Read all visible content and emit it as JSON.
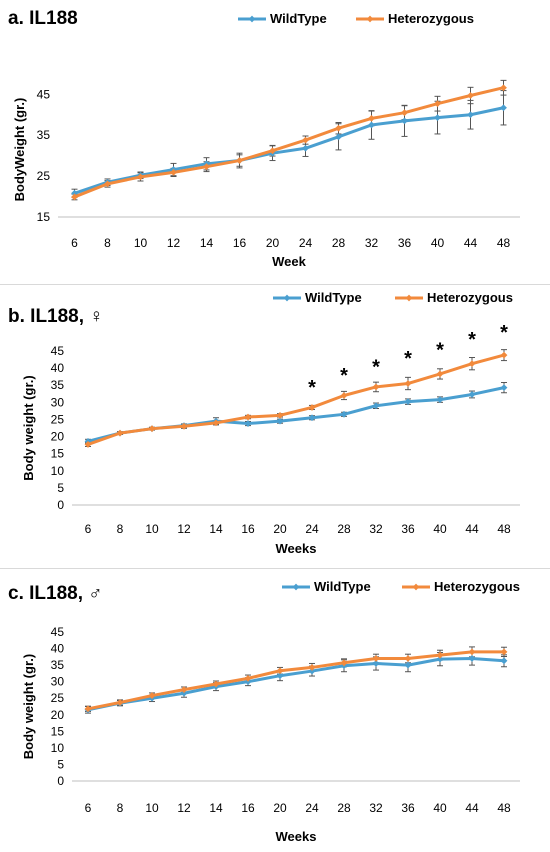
{
  "colors": {
    "wildtype": "#4a9fd0",
    "heterozygous": "#f28a3c",
    "errorbar": "#555555"
  },
  "chart_data": [
    {
      "type": "line",
      "title": "a. IL188",
      "xlabel": "Week",
      "ylabel": "BodyWeight (gr.)",
      "ylim": [
        15,
        48
      ],
      "yticks": [
        15,
        25,
        35,
        45
      ],
      "categories": [
        "6",
        "8",
        "10",
        "12",
        "14",
        "16",
        "20",
        "24",
        "28",
        "32",
        "36",
        "40",
        "44",
        "48"
      ],
      "legend_position": "top-right",
      "series": [
        {
          "name": "WildType",
          "values": [
            20.8,
            23.5,
            25.2,
            26.6,
            28.0,
            28.8,
            30.6,
            31.8,
            34.6,
            37.5,
            38.5,
            39.3,
            40.0,
            41.7
          ],
          "errors": [
            1.0,
            0.8,
            0.8,
            1.5,
            1.5,
            1.8,
            1.8,
            2.0,
            3.2,
            3.5,
            3.8,
            4.0,
            3.5,
            4.2
          ]
        },
        {
          "name": "Heterozygous",
          "values": [
            19.9,
            23.1,
            24.8,
            25.9,
            27.3,
            28.8,
            31.2,
            33.8,
            36.7,
            39.1,
            40.5,
            42.7,
            44.7,
            46.6
          ],
          "errors": [
            0.7,
            0.8,
            1.0,
            1.0,
            1.2,
            1.4,
            1.3,
            1.0,
            1.4,
            1.8,
            1.7,
            1.8,
            2.0,
            1.8
          ]
        }
      ],
      "annotations": []
    },
    {
      "type": "line",
      "title": "b. IL188, ♀",
      "xlabel": "Weeks",
      "ylabel": "Body weight (gr.)",
      "ylim": [
        0,
        45
      ],
      "yticks": [
        0,
        5,
        10,
        15,
        20,
        25,
        30,
        35,
        40,
        45
      ],
      "categories": [
        "6",
        "8",
        "10",
        "12",
        "14",
        "16",
        "20",
        "24",
        "28",
        "32",
        "36",
        "40",
        "44",
        "48"
      ],
      "legend_position": "top-right",
      "series": [
        {
          "name": "WildType",
          "values": [
            18.6,
            21.0,
            22.3,
            23.2,
            24.5,
            23.8,
            24.5,
            25.5,
            26.5,
            29.0,
            30.2,
            30.8,
            32.3,
            34.3
          ],
          "errors": [
            0.6,
            0.4,
            0.4,
            0.5,
            1.0,
            0.6,
            0.6,
            0.6,
            0.6,
            0.8,
            0.8,
            0.8,
            1.0,
            1.5
          ]
        },
        {
          "name": "Heterozygous",
          "values": [
            17.7,
            21.0,
            22.3,
            23.0,
            24.0,
            25.7,
            26.2,
            28.5,
            32.0,
            34.5,
            35.5,
            38.3,
            41.3,
            43.8
          ],
          "errors": [
            0.6,
            0.4,
            0.4,
            0.6,
            0.6,
            0.5,
            0.5,
            0.6,
            1.2,
            1.4,
            1.8,
            1.5,
            1.8,
            1.6
          ]
        }
      ],
      "annotations": [
        {
          "category": "24",
          "text": "*",
          "y": 34.5
        },
        {
          "category": "28",
          "text": "*",
          "y": 38.0
        },
        {
          "category": "32",
          "text": "*",
          "y": 40.5
        },
        {
          "category": "36",
          "text": "*",
          "y": 43.0
        },
        {
          "category": "40",
          "text": "*",
          "y": 45.5
        },
        {
          "category": "44",
          "text": "*",
          "y": 48.5
        },
        {
          "category": "48",
          "text": "*",
          "y": 50.5
        }
      ]
    },
    {
      "type": "line",
      "title": "c. IL188, ♂",
      "xlabel": "Weeks",
      "ylabel": "Body weight (gr.)",
      "ylim": [
        0,
        45
      ],
      "yticks": [
        0,
        5,
        10,
        15,
        20,
        25,
        30,
        35,
        40,
        45
      ],
      "categories": [
        "6",
        "8",
        "10",
        "12",
        "14",
        "16",
        "20",
        "24",
        "28",
        "32",
        "36",
        "40",
        "44",
        "48"
      ],
      "legend_position": "top-right",
      "series": [
        {
          "name": "WildType",
          "values": [
            21.5,
            23.5,
            25.0,
            26.5,
            28.5,
            30.0,
            31.8,
            33.2,
            34.8,
            35.5,
            35.0,
            36.8,
            37.0,
            36.3
          ],
          "errors": [
            1.0,
            0.8,
            1.0,
            1.2,
            1.2,
            1.2,
            1.5,
            1.5,
            1.8,
            2.0,
            2.0,
            2.0,
            2.0,
            1.8
          ]
        },
        {
          "name": "Heterozygous",
          "values": [
            21.8,
            23.7,
            25.8,
            27.6,
            29.3,
            31.0,
            33.3,
            34.3,
            35.7,
            37.0,
            37.0,
            38.0,
            39.0,
            39.0
          ],
          "errors": [
            0.8,
            0.8,
            0.8,
            0.8,
            0.9,
            1.0,
            1.0,
            1.2,
            1.2,
            1.3,
            1.3,
            1.5,
            1.5,
            1.4
          ]
        }
      ],
      "annotations": []
    }
  ]
}
